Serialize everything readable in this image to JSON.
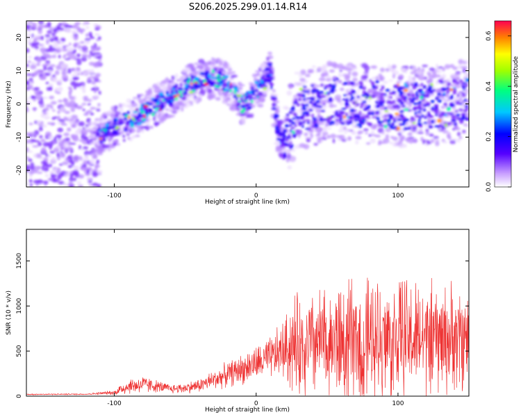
{
  "title": "S206.2025.299.01.14.R14",
  "chart_data": [
    {
      "type": "heatmap",
      "xlabel": "Height of straight line (km)",
      "ylabel": "Frequency (Hz)",
      "xlim": [
        -162,
        150
      ],
      "ylim": [
        -25,
        25
      ],
      "xticks": [
        -100,
        0,
        100
      ],
      "yticks": [
        -20,
        -10,
        0,
        10,
        20
      ],
      "colorbar": {
        "label": "Normalized spectral amplitude",
        "range": [
          0.0,
          0.66
        ],
        "ticks": [
          0.0,
          0.2,
          0.4,
          0.6
        ],
        "colormap": "rainbow (purple to red)"
      },
      "ridge": {
        "x": [
          -112,
          -100,
          -90,
          -80,
          -70,
          -60,
          -50,
          -40,
          -30,
          -20,
          -10,
          -5,
          0,
          5,
          10,
          14,
          18,
          30,
          50,
          80,
          110,
          150
        ],
        "y": [
          -10,
          -7,
          -5,
          -3,
          0,
          2,
          5,
          7,
          8,
          6,
          0,
          1,
          4,
          6,
          10,
          -5,
          -12,
          -2,
          1,
          0,
          -1,
          1
        ]
      }
    },
    {
      "type": "line",
      "xlabel": "Height of straight line (km)",
      "ylabel": "SNR (10 * v/v)",
      "xlim": [
        -162,
        150
      ],
      "ylim": [
        0,
        1850
      ],
      "xticks": [
        -100,
        0,
        100
      ],
      "yticks": [
        0,
        500,
        1000,
        1500
      ],
      "color": "#ee3333",
      "envelope": {
        "x": [
          -162,
          -120,
          -100,
          -95,
          -90,
          -80,
          -70,
          -60,
          -50,
          -40,
          -30,
          -20,
          -10,
          0,
          10,
          20,
          25,
          40,
          60,
          80,
          100,
          120,
          150
        ],
        "mean": [
          20,
          22,
          40,
          80,
          110,
          130,
          110,
          80,
          90,
          120,
          180,
          240,
          300,
          360,
          420,
          520,
          560,
          580,
          600,
          620,
          640,
          620,
          650
        ],
        "spread": [
          8,
          8,
          30,
          90,
          100,
          120,
          80,
          60,
          70,
          90,
          130,
          160,
          200,
          230,
          280,
          400,
          650,
          700,
          800,
          820,
          800,
          750,
          700
        ]
      }
    }
  ]
}
